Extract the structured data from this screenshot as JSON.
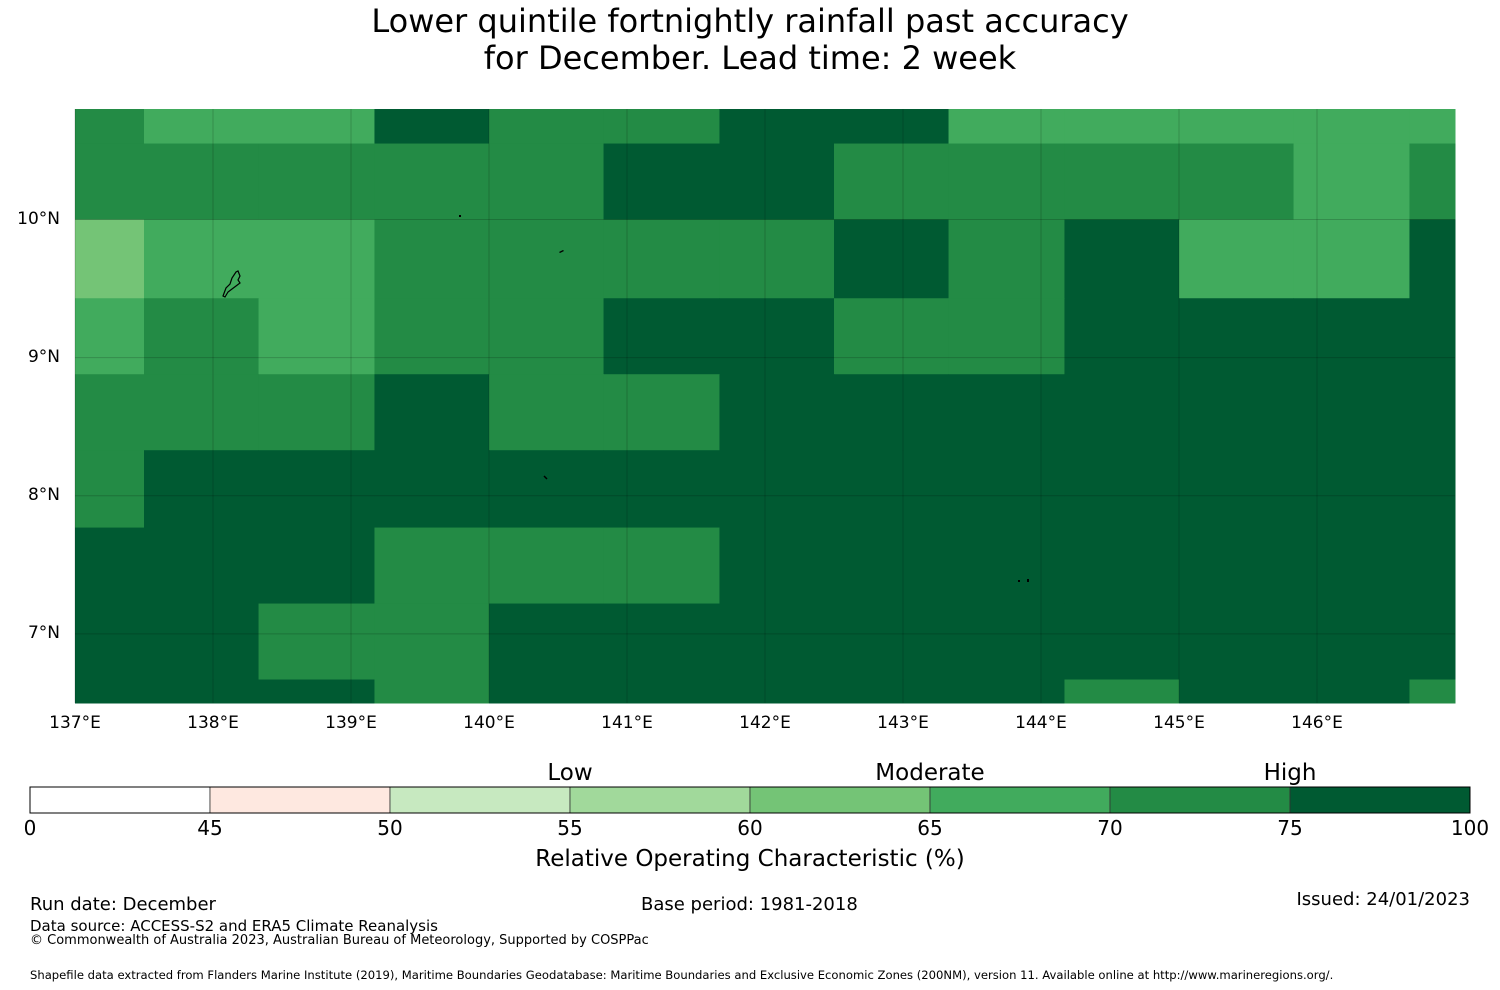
{
  "title": {
    "line1": "Lower quintile fortnightly rainfall past accuracy",
    "line2": "for December. Lead time: 2 week"
  },
  "map": {
    "lon_range": [
      137.0,
      147.0
    ],
    "lat_range": [
      6.5,
      10.8
    ],
    "x_ticks": [
      {
        "value": 137,
        "label": "137°E"
      },
      {
        "value": 138,
        "label": "138°E"
      },
      {
        "value": 139,
        "label": "139°E"
      },
      {
        "value": 140,
        "label": "140°E"
      },
      {
        "value": 141,
        "label": "141°E"
      },
      {
        "value": 142,
        "label": "142°E"
      },
      {
        "value": 143,
        "label": "143°E"
      },
      {
        "value": 144,
        "label": "144°E"
      },
      {
        "value": 145,
        "label": "145°E"
      },
      {
        "value": 146,
        "label": "146°E"
      }
    ],
    "y_ticks": [
      {
        "value": 10,
        "label": "10°N"
      },
      {
        "value": 9,
        "label": "9°N"
      },
      {
        "value": 8,
        "label": "8°N"
      },
      {
        "value": 7,
        "label": "7°N"
      }
    ],
    "cell_lon_edges": [
      137.0,
      137.5,
      138.33,
      139.17,
      140.0,
      140.83,
      141.67,
      142.5,
      143.33,
      144.17,
      145.0,
      145.83,
      146.67,
      147.0
    ],
    "cell_lat_edges": [
      10.8,
      10.55,
      10.0,
      9.43,
      8.88,
      8.33,
      7.77,
      7.22,
      6.67,
      6.5
    ],
    "grid_rows": [
      [
        8,
        7,
        7,
        8,
        9,
        8,
        10,
        10,
        7,
        7,
        7,
        7,
        7
      ],
      [
        8,
        8,
        8,
        8,
        8,
        10,
        10,
        8,
        8,
        8,
        8,
        7,
        8
      ],
      [
        5,
        7,
        7,
        8,
        8,
        8,
        8,
        10,
        8,
        8,
        10,
        7,
        7
      ],
      [
        7,
        8,
        7,
        8,
        8,
        8,
        10,
        10,
        8,
        8,
        10,
        10,
        10
      ],
      [
        8,
        8,
        8,
        8,
        10,
        8,
        8,
        10,
        10,
        10,
        10,
        10,
        10
      ],
      [
        8,
        10,
        10,
        10,
        10,
        10,
        10,
        10,
        10,
        10,
        10,
        10,
        10
      ],
      [
        10,
        10,
        10,
        10,
        8,
        8,
        10,
        10,
        10,
        10,
        10,
        10,
        10
      ],
      [
        10,
        10,
        10,
        8,
        8,
        10,
        10,
        10,
        10,
        10,
        10,
        10,
        10
      ],
      [
        10,
        10,
        10,
        10,
        8,
        10,
        10,
        10,
        10,
        10,
        8,
        10,
        10
      ]
    ],
    "grid_row_overrides": [
      {
        "row": 0,
        "col": 3,
        "value": 10
      },
      {
        "row": 0,
        "col": 4,
        "value": 8
      },
      {
        "row": 1,
        "col": 4,
        "value": 8
      },
      {
        "row": 2,
        "col": 9,
        "value": 10
      },
      {
        "row": 2,
        "col": 10,
        "value": 7
      },
      {
        "row": 2,
        "col": 11,
        "value": 7
      },
      {
        "row": 2,
        "col": 12,
        "value": 10
      },
      {
        "row": 3,
        "col": 0,
        "value": 7
      },
      {
        "row": 3,
        "col": 2,
        "value": 7
      },
      {
        "row": 3,
        "col": 3,
        "value": 8
      },
      {
        "row": 3,
        "col": 5,
        "value": 10
      },
      {
        "row": 3,
        "col": 7,
        "value": 8
      },
      {
        "row": 3,
        "col": 8,
        "value": 8
      },
      {
        "row": 3,
        "col": 9,
        "value": 10
      },
      {
        "row": 4,
        "col": 3,
        "value": 10
      },
      {
        "row": 4,
        "col": 4,
        "value": 8
      },
      {
        "row": 4,
        "col": 5,
        "value": 8
      },
      {
        "row": 4,
        "col": 6,
        "value": 10
      },
      {
        "row": 5,
        "col": 0,
        "value": 8
      },
      {
        "row": 6,
        "col": 3,
        "value": 8
      },
      {
        "row": 6,
        "col": 4,
        "value": 8
      },
      {
        "row": 7,
        "col": 2,
        "value": 8
      },
      {
        "row": 7,
        "col": 3,
        "value": 8
      },
      {
        "row": 7,
        "col": 4,
        "value": 10
      },
      {
        "row": 8,
        "col": 3,
        "value": 8
      },
      {
        "row": 8,
        "col": 4,
        "value": 10
      },
      {
        "row": 8,
        "col": 9,
        "value": 8
      },
      {
        "row": 8,
        "col": 10,
        "value": 10
      },
      {
        "row": 8,
        "col": 12,
        "value": 8
      }
    ],
    "palette": [
      "#ffffff",
      "#fee8e0",
      "#c7e9c0",
      "#a1d99b",
      "#74c476",
      "#41ab5d",
      "#238b45",
      "#005a32"
    ]
  },
  "colorbar": {
    "bounds": [
      0,
      45,
      50,
      55,
      60,
      65,
      70,
      75,
      100
    ],
    "tick_labels": [
      "0",
      "45",
      "50",
      "55",
      "60",
      "65",
      "70",
      "75",
      "100"
    ],
    "colors": [
      "#ffffff",
      "#fee8e0",
      "#c7e9c0",
      "#a1d99b",
      "#74c476",
      "#41ab5d",
      "#238b45",
      "#005a32"
    ],
    "categories": [
      "Low",
      "Moderate",
      "High"
    ],
    "title": "Relative Operating Characteristic (%)"
  },
  "footer": {
    "run_date": "Run date: December",
    "base_period": "Base period: 1981-2018",
    "issued": "Issued: 24/01/2023",
    "data_source": "Data source: ACCESS-S2 and ERA5 Climate Reanalysis",
    "copyright": "© Commonwealth of Australia 2023, Australian Bureau of Meteorology, Supported by COSPPac",
    "shapefile": "Shapefile data extracted from Flanders Marine Institute (2019), Maritime Boundaries Geodatabase: Maritime Boundaries and Exclusive Economic Zones (200NM), version 11. Available online at http://www.marineregions.org/."
  }
}
